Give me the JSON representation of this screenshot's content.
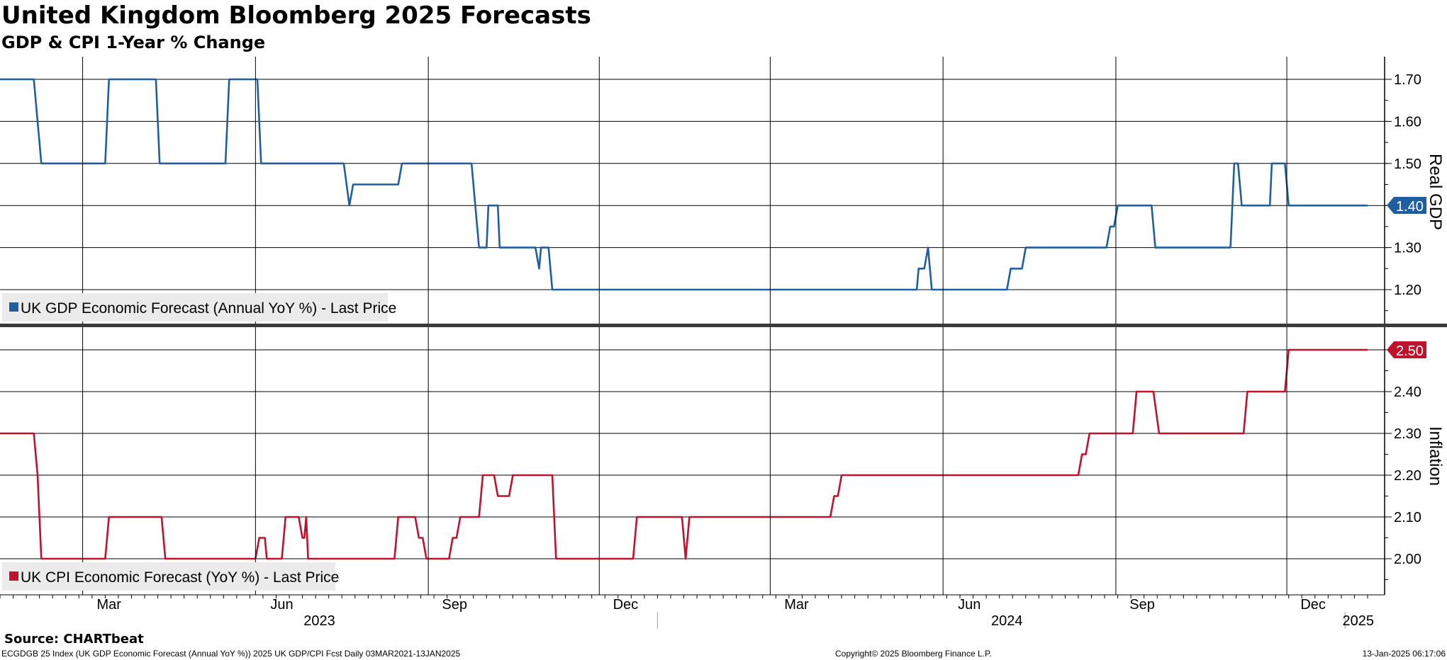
{
  "title": "United Kingdom Bloomberg 2025 Forecasts",
  "subtitle": "GDP & CPI 1-Year % Change",
  "source": "Source: CHARTbeat",
  "footer": {
    "left": "ECGDGB 25 Index (UK GDP Economic Forecast (Annual YoY %)) 2025 UK GDP/CPI Fcst  Daily 03MAR2021-13JAN2025",
    "middle": "Copyright© 2025 Bloomberg Finance L.P.",
    "right": "13-Jan-2025 06:17:06"
  },
  "x_axis": {
    "months": [
      {
        "label": "Mar",
        "date": "2023-03-15"
      },
      {
        "label": "Jun",
        "date": "2023-06-15"
      },
      {
        "label": "Sep",
        "date": "2023-09-15"
      },
      {
        "label": "Dec",
        "date": "2023-12-15"
      },
      {
        "label": "Mar",
        "date": "2024-03-15"
      },
      {
        "label": "Jun",
        "date": "2024-06-15"
      },
      {
        "label": "Sep",
        "date": "2024-09-15"
      },
      {
        "label": "Dec",
        "date": "2024-12-15"
      }
    ],
    "years": [
      "2023",
      "2024",
      "2025"
    ]
  },
  "chart_data": [
    {
      "type": "line",
      "panel": "top",
      "ylabel": "Real GDP",
      "yticks": [
        1.2,
        1.3,
        1.4,
        1.5,
        1.6,
        1.7
      ],
      "ylim": [
        1.12,
        1.755
      ],
      "series": [
        {
          "name": "UK GDP Economic Forecast (Annual YoY %) - Last Price",
          "color": "#1f5fa0",
          "last_value": "1.40",
          "points": [
            [
              "2023-01-16",
              1.7
            ],
            [
              "2023-02-03",
              1.7
            ],
            [
              "2023-02-07",
              1.5
            ],
            [
              "2023-03-13",
              1.5
            ],
            [
              "2023-03-15",
              1.7
            ],
            [
              "2023-04-09",
              1.7
            ],
            [
              "2023-04-11",
              1.5
            ],
            [
              "2023-05-16",
              1.5
            ],
            [
              "2023-05-18",
              1.7
            ],
            [
              "2023-06-02",
              1.7
            ],
            [
              "2023-06-04",
              1.5
            ],
            [
              "2023-07-18",
              1.5
            ],
            [
              "2023-07-21",
              1.4
            ],
            [
              "2023-07-23",
              1.45
            ],
            [
              "2023-08-16",
              1.45
            ],
            [
              "2023-08-18",
              1.5
            ],
            [
              "2023-09-24",
              1.5
            ],
            [
              "2023-09-26",
              1.4
            ],
            [
              "2023-09-28",
              1.3
            ],
            [
              "2023-10-02",
              1.3
            ],
            [
              "2023-10-03",
              1.4
            ],
            [
              "2023-10-08",
              1.4
            ],
            [
              "2023-10-09",
              1.3
            ],
            [
              "2023-10-28",
              1.3
            ],
            [
              "2023-10-30",
              1.25
            ],
            [
              "2023-10-31",
              1.3
            ],
            [
              "2023-11-04",
              1.3
            ],
            [
              "2023-11-06",
              1.2
            ],
            [
              "2024-05-18",
              1.2
            ],
            [
              "2024-05-19",
              1.25
            ],
            [
              "2024-05-22",
              1.25
            ],
            [
              "2024-05-24",
              1.3
            ],
            [
              "2024-05-26",
              1.2
            ],
            [
              "2024-07-05",
              1.2
            ],
            [
              "2024-07-07",
              1.25
            ],
            [
              "2024-07-13",
              1.25
            ],
            [
              "2024-07-15",
              1.3
            ],
            [
              "2024-08-27",
              1.3
            ],
            [
              "2024-08-29",
              1.35
            ],
            [
              "2024-08-31",
              1.35
            ],
            [
              "2024-09-02",
              1.4
            ],
            [
              "2024-09-20",
              1.4
            ],
            [
              "2024-09-22",
              1.3
            ],
            [
              "2024-11-01",
              1.3
            ],
            [
              "2024-11-03",
              1.5
            ],
            [
              "2024-11-05",
              1.5
            ],
            [
              "2024-11-07",
              1.4
            ],
            [
              "2024-11-22",
              1.4
            ],
            [
              "2024-11-23",
              1.5
            ],
            [
              "2024-11-30",
              1.5
            ],
            [
              "2024-12-02",
              1.4
            ],
            [
              "2025-01-13",
              1.4
            ]
          ]
        }
      ]
    },
    {
      "type": "line",
      "panel": "bottom",
      "ylabel": "Inflation",
      "yticks": [
        2.0,
        2.1,
        2.2,
        2.3,
        2.4,
        2.5
      ],
      "ylim": [
        1.915,
        2.545
      ],
      "series": [
        {
          "name": "UK CPI Economic Forecast (YoY %) - Last Price",
          "color": "#c0122c",
          "last_value": "2.50",
          "points": [
            [
              "2023-01-16",
              2.3
            ],
            [
              "2023-02-03",
              2.3
            ],
            [
              "2023-02-05",
              2.2
            ],
            [
              "2023-02-07",
              2.0
            ],
            [
              "2023-03-13",
              2.0
            ],
            [
              "2023-03-15",
              2.1
            ],
            [
              "2023-04-12",
              2.1
            ],
            [
              "2023-04-14",
              2.0
            ],
            [
              "2023-06-01",
              2.0
            ],
            [
              "2023-06-03",
              2.05
            ],
            [
              "2023-06-06",
              2.05
            ],
            [
              "2023-06-07",
              2.0
            ],
            [
              "2023-06-15",
              2.0
            ],
            [
              "2023-06-17",
              2.1
            ],
            [
              "2023-06-24",
              2.1
            ],
            [
              "2023-06-26",
              2.05
            ],
            [
              "2023-06-27",
              2.05
            ],
            [
              "2023-06-28",
              2.1
            ],
            [
              "2023-06-29",
              2.0
            ],
            [
              "2023-08-14",
              2.0
            ],
            [
              "2023-08-16",
              2.1
            ],
            [
              "2023-08-25",
              2.1
            ],
            [
              "2023-08-27",
              2.05
            ],
            [
              "2023-08-29",
              2.05
            ],
            [
              "2023-08-31",
              2.0
            ],
            [
              "2023-09-12",
              2.0
            ],
            [
              "2023-09-14",
              2.05
            ],
            [
              "2023-09-16",
              2.05
            ],
            [
              "2023-09-18",
              2.1
            ],
            [
              "2023-09-28",
              2.1
            ],
            [
              "2023-09-30",
              2.2
            ],
            [
              "2023-10-06",
              2.2
            ],
            [
              "2023-10-08",
              2.15
            ],
            [
              "2023-10-14",
              2.15
            ],
            [
              "2023-10-16",
              2.2
            ],
            [
              "2023-11-06",
              2.2
            ],
            [
              "2023-11-08",
              2.0
            ],
            [
              "2023-12-19",
              2.0
            ],
            [
              "2023-12-21",
              2.1
            ],
            [
              "2024-01-14",
              2.1
            ],
            [
              "2024-01-16",
              2.0
            ],
            [
              "2024-01-18",
              2.1
            ],
            [
              "2024-04-02",
              2.1
            ],
            [
              "2024-04-04",
              2.15
            ],
            [
              "2024-04-06",
              2.15
            ],
            [
              "2024-04-08",
              2.2
            ],
            [
              "2024-08-12",
              2.2
            ],
            [
              "2024-08-14",
              2.25
            ],
            [
              "2024-08-16",
              2.25
            ],
            [
              "2024-08-18",
              2.3
            ],
            [
              "2024-09-10",
              2.3
            ],
            [
              "2024-09-12",
              2.4
            ],
            [
              "2024-09-21",
              2.4
            ],
            [
              "2024-09-24",
              2.3
            ],
            [
              "2024-11-08",
              2.3
            ],
            [
              "2024-11-10",
              2.4
            ],
            [
              "2024-11-30",
              2.4
            ],
            [
              "2024-12-02",
              2.5
            ],
            [
              "2025-01-13",
              2.5
            ]
          ]
        }
      ]
    }
  ]
}
